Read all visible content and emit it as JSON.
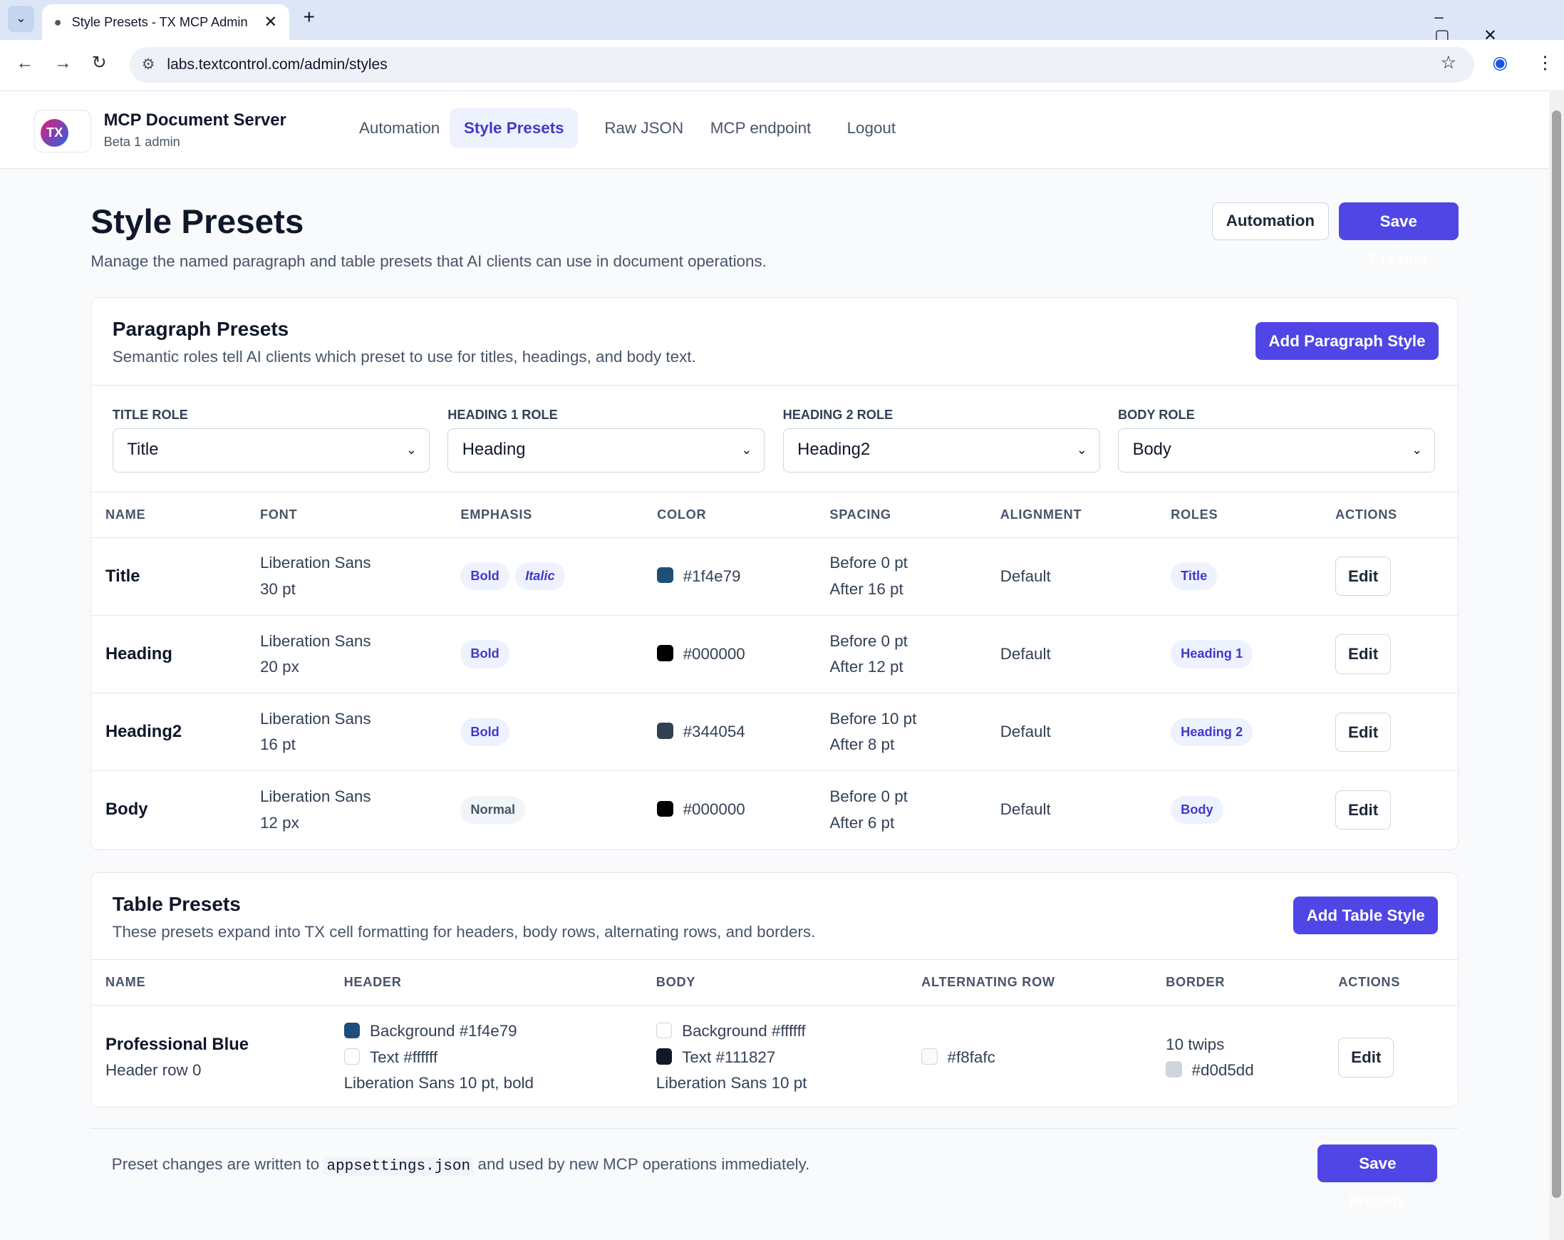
{
  "browser": {
    "tab_title": "Style Presets - TX MCP Admin",
    "url": "labs.textcontrol.com/admin/styles"
  },
  "app": {
    "brand": "MCP Document Server",
    "subtitle": "Beta 1 admin",
    "logo": "TX",
    "nav": [
      "Automation",
      "Style Presets",
      "Raw JSON",
      "MCP endpoint",
      "Logout"
    ],
    "active_nav": 1
  },
  "page": {
    "title": "Style Presets",
    "description": "Manage the named paragraph and table presets that AI clients can use in document operations.",
    "secondary_button": "Automation",
    "primary_button": "Save Presets"
  },
  "paragraph_presets": {
    "title": "Paragraph Presets",
    "description": "Semantic roles tell AI clients which preset to use for titles, headings, and body text.",
    "add_button": "Add Paragraph Style",
    "roles": [
      {
        "label": "TITLE ROLE",
        "value": "Title"
      },
      {
        "label": "HEADING 1 ROLE",
        "value": "Heading"
      },
      {
        "label": "HEADING 2 ROLE",
        "value": "Heading2"
      },
      {
        "label": "BODY ROLE",
        "value": "Body"
      }
    ],
    "columns": [
      "NAME",
      "FONT",
      "EMPHASIS",
      "COLOR",
      "SPACING",
      "ALIGNMENT",
      "ROLES",
      "ACTIONS"
    ],
    "rows": [
      {
        "name": "Title",
        "font": "Liberation Sans",
        "size": "30 pt",
        "emphasis": [
          "Bold",
          "Italic"
        ],
        "color": "#1f4e79",
        "before": "Before 0 pt",
        "after": "After 16 pt",
        "alignment": "Default",
        "role": "Title",
        "action": "Edit"
      },
      {
        "name": "Heading",
        "font": "Liberation Sans",
        "size": "20 px",
        "emphasis": [
          "Bold"
        ],
        "color": "#000000",
        "before": "Before 0 pt",
        "after": "After 12 pt",
        "alignment": "Default",
        "role": "Heading 1",
        "action": "Edit"
      },
      {
        "name": "Heading2",
        "font": "Liberation Sans",
        "size": "16 pt",
        "emphasis": [
          "Bold"
        ],
        "color": "#344054",
        "before": "Before 10 pt",
        "after": "After 8 pt",
        "alignment": "Default",
        "role": "Heading 2",
        "action": "Edit"
      },
      {
        "name": "Body",
        "font": "Liberation Sans",
        "size": "12 px",
        "emphasis": [
          "Normal"
        ],
        "color": "#000000",
        "before": "Before 0 pt",
        "after": "After 6 pt",
        "alignment": "Default",
        "role": "Body",
        "action": "Edit"
      }
    ]
  },
  "table_presets": {
    "title": "Table Presets",
    "description": "These presets expand into TX cell formatting for headers, body rows, alternating rows, and borders.",
    "add_button": "Add Table Style",
    "columns": [
      "NAME",
      "HEADER",
      "BODY",
      "ALTERNATING ROW",
      "BORDER",
      "ACTIONS"
    ],
    "rows": [
      {
        "name": "Professional Blue",
        "detail": "Header row 0",
        "header": [
          {
            "label": "Background",
            "color": "#1f4e79"
          },
          {
            "label": "Text",
            "color": "#ffffff"
          }
        ],
        "header_font": "Liberation Sans 10 pt, bold",
        "body": [
          {
            "label": "Background",
            "color": "#ffffff"
          },
          {
            "label": "Text",
            "color": "#111827"
          }
        ],
        "body_font": "Liberation Sans 10 pt",
        "alternating": "#f8fafc",
        "border_width": "10 twips",
        "border_color": "#d0d5dd",
        "action": "Edit"
      }
    ]
  },
  "footer": {
    "before": "Preset changes are written to",
    "code": "appsettings.json",
    "after": "and used by new MCP operations immediately.",
    "button": "Save Presets"
  }
}
